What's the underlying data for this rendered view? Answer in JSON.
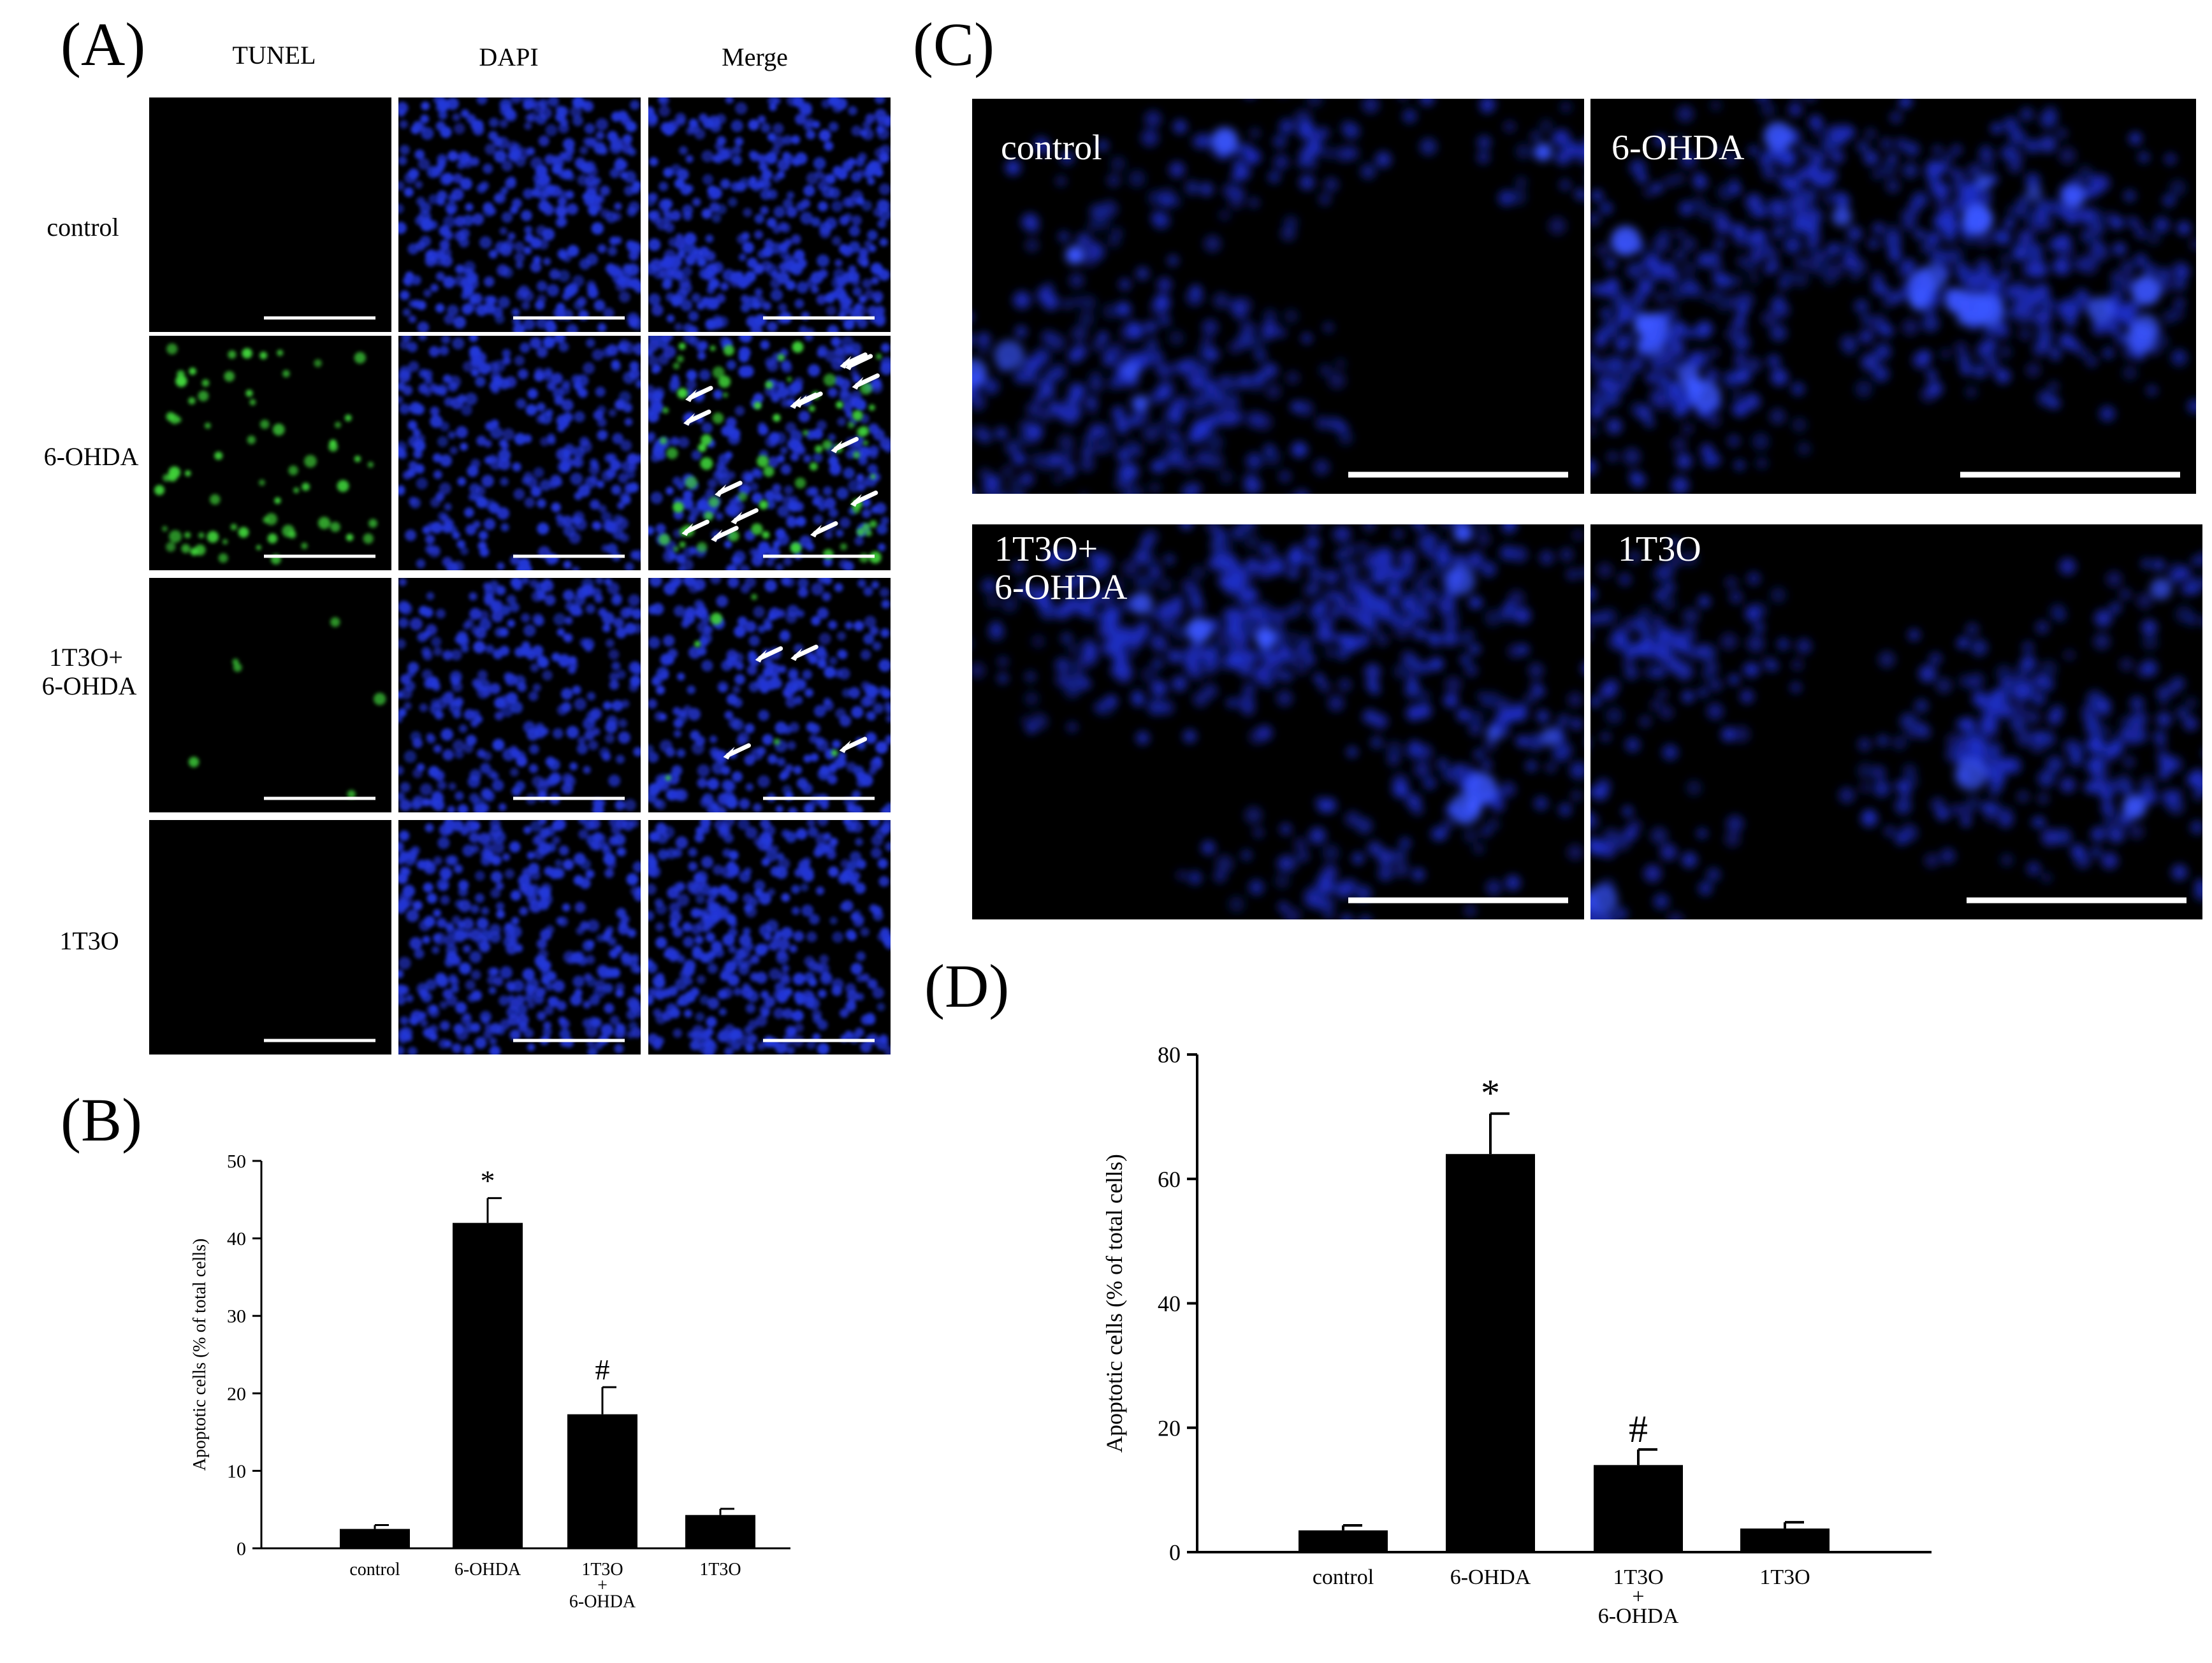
{
  "panel_a": {
    "label": "(A)",
    "columns": [
      "TUNEL",
      "DAPI",
      "Merge"
    ],
    "rows": [
      "control",
      "6-OHDA",
      "1T3O+",
      "6-OHDA",
      "1T3O"
    ],
    "colors": {
      "tunel": "#3fd13a",
      "dapi": "#2437d8",
      "background": "#000000",
      "arrow": "#ffffff"
    }
  },
  "panel_b": {
    "label": "(B)"
  },
  "panel_c": {
    "label": "(C)",
    "tiles": [
      "control",
      "6-OHDA",
      "1T3O+",
      "6-OHDA",
      "1T3O"
    ]
  },
  "panel_d": {
    "label": "(D)"
  },
  "chart_data": [
    {
      "type": "bar",
      "panel": "B",
      "categories": [
        "control",
        "6-OHDA",
        "1T3O",
        "1T3O"
      ],
      "category_sublines": [
        "",
        "",
        "6-OHDA",
        ""
      ],
      "category_joiner": "+",
      "values": [
        2.5,
        42,
        17.3,
        4.3
      ],
      "errors": [
        0.5,
        3.2,
        3.5,
        0.8
      ],
      "annotations": [
        "",
        "*",
        "#",
        ""
      ],
      "ylabel": "Apoptotic cells (% of total cells)",
      "ylim": [
        0,
        50
      ],
      "yticks": [
        0,
        10,
        20,
        30,
        40,
        50
      ],
      "bar_color": "#000000"
    },
    {
      "type": "bar",
      "panel": "D",
      "categories": [
        "control",
        "6-OHDA",
        "1T3O",
        "1T3O"
      ],
      "category_sublines": [
        "",
        "",
        "6-OHDA",
        ""
      ],
      "category_joiner": "+",
      "values": [
        3.5,
        64,
        14,
        3.8
      ],
      "errors": [
        0.8,
        6.5,
        2.5,
        1.0
      ],
      "annotations": [
        "",
        "*",
        "#",
        ""
      ],
      "ylabel": "Apoptotic cells (% of total cells)",
      "ylim": [
        0,
        80
      ],
      "yticks": [
        0,
        20,
        40,
        60,
        80
      ],
      "bar_color": "#000000"
    }
  ]
}
